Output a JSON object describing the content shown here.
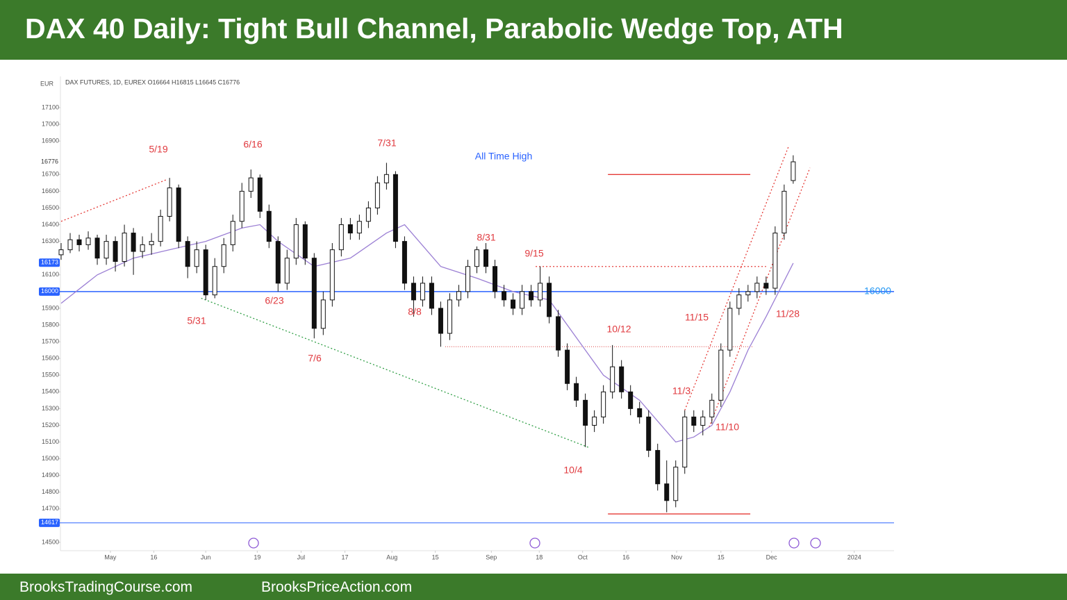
{
  "header": {
    "title": "DAX 40 Daily: Tight Bull Channel, Parabolic Wedge Top, ATH"
  },
  "footer": {
    "left": "BrooksTradingCourse.com",
    "right": "BrooksPriceAction.com"
  },
  "chart_data": {
    "type": "candlestick",
    "currency": "EUR",
    "legend_text": "DAX FUTURES, 1D, EUREX  O16664  H16815  L16645  C16776",
    "up_color": "#ffffff",
    "down_color": "#111111",
    "ylim": [
      14500,
      17100
    ],
    "yticks": [
      14500,
      14700,
      14800,
      14900,
      15000,
      15100,
      15200,
      15300,
      15400,
      15500,
      15600,
      15700,
      15800,
      15900,
      16000,
      16100,
      16300,
      16400,
      16500,
      16600,
      16700,
      16900,
      17000,
      17100
    ],
    "xlim": [
      0,
      184
    ],
    "xticks": [
      {
        "value": 10.9,
        "label": "May"
      },
      {
        "value": 20.5,
        "label": "16"
      },
      {
        "value": 32,
        "label": "Jun"
      },
      {
        "value": 43.4,
        "label": "19"
      },
      {
        "value": 53.1,
        "label": "Jul"
      },
      {
        "value": 62.8,
        "label": "17"
      },
      {
        "value": 73.2,
        "label": "Aug"
      },
      {
        "value": 82.8,
        "label": "15"
      },
      {
        "value": 95.2,
        "label": "Sep"
      },
      {
        "value": 105.8,
        "label": "18"
      },
      {
        "value": 115.4,
        "label": "Oct"
      },
      {
        "value": 125,
        "label": "16"
      },
      {
        "value": 136.2,
        "label": "Nov"
      },
      {
        "value": 146,
        "label": "15"
      },
      {
        "value": 157.2,
        "label": "Dec"
      },
      {
        "value": 175.5,
        "label": "2024"
      }
    ],
    "x": [
      0,
      2,
      4,
      6,
      8,
      10,
      12,
      14,
      16,
      18,
      20,
      22,
      24,
      26,
      28,
      30,
      32,
      34,
      36,
      38,
      40,
      42,
      44,
      46,
      48,
      50,
      52,
      54,
      56,
      58,
      60,
      62,
      64,
      66,
      68,
      70,
      72,
      74,
      76,
      78,
      80,
      82,
      84,
      86,
      88,
      90,
      92,
      94,
      96,
      98,
      100,
      102,
      104,
      106,
      108,
      110,
      112,
      114,
      116,
      118,
      120,
      122,
      124,
      126,
      128,
      130,
      132,
      134,
      136,
      138,
      140,
      142,
      144,
      146,
      148,
      150,
      152,
      154,
      156,
      158,
      160,
      162
    ],
    "ohlc": [
      [
        16220,
        16290,
        16190,
        16250
      ],
      [
        16250,
        16350,
        16230,
        16310
      ],
      [
        16310,
        16340,
        16240,
        16280
      ],
      [
        16280,
        16360,
        16250,
        16320
      ],
      [
        16320,
        16340,
        16160,
        16200
      ],
      [
        16200,
        16340,
        16160,
        16300
      ],
      [
        16300,
        16330,
        16120,
        16180
      ],
      [
        16180,
        16400,
        16150,
        16350
      ],
      [
        16350,
        16380,
        16100,
        16240
      ],
      [
        16240,
        16330,
        16200,
        16280
      ],
      [
        16280,
        16350,
        16220,
        16300
      ],
      [
        16300,
        16490,
        16270,
        16450
      ],
      [
        16450,
        16680,
        16420,
        16620
      ],
      [
        16620,
        16640,
        16260,
        16300
      ],
      [
        16300,
        16330,
        16080,
        16150
      ],
      [
        16150,
        16300,
        16110,
        16250
      ],
      [
        16250,
        16280,
        15950,
        15980
      ],
      [
        15980,
        16200,
        15960,
        16150
      ],
      [
        16150,
        16320,
        16110,
        16280
      ],
      [
        16280,
        16460,
        16240,
        16420
      ],
      [
        16420,
        16650,
        16380,
        16600
      ],
      [
        16600,
        16730,
        16560,
        16680
      ],
      [
        16680,
        16700,
        16440,
        16480
      ],
      [
        16480,
        16520,
        16260,
        16300
      ],
      [
        16300,
        16330,
        16000,
        16050
      ],
      [
        16050,
        16250,
        16010,
        16200
      ],
      [
        16200,
        16440,
        16160,
        16400
      ],
      [
        16400,
        16420,
        16160,
        16200
      ],
      [
        16200,
        16230,
        15720,
        15780
      ],
      [
        15780,
        16000,
        15740,
        15950
      ],
      [
        15950,
        16290,
        15910,
        16250
      ],
      [
        16250,
        16440,
        16210,
        16400
      ],
      [
        16400,
        16440,
        16310,
        16350
      ],
      [
        16350,
        16460,
        16310,
        16420
      ],
      [
        16420,
        16540,
        16380,
        16500
      ],
      [
        16500,
        16690,
        16460,
        16650
      ],
      [
        16650,
        16770,
        16610,
        16700
      ],
      [
        16700,
        16720,
        16260,
        16300
      ],
      [
        16300,
        16330,
        16010,
        16050
      ],
      [
        16050,
        16090,
        15850,
        15950
      ],
      [
        15950,
        16090,
        15910,
        16050
      ],
      [
        16050,
        16090,
        15860,
        15900
      ],
      [
        15900,
        15940,
        15670,
        15750
      ],
      [
        15750,
        15990,
        15710,
        15950
      ],
      [
        15950,
        16040,
        15910,
        16000
      ],
      [
        16000,
        16190,
        15960,
        16150
      ],
      [
        16150,
        16270,
        16110,
        16250
      ],
      [
        16250,
        16290,
        16110,
        16150
      ],
      [
        16150,
        16190,
        15960,
        16000
      ],
      [
        16000,
        16040,
        15910,
        15950
      ],
      [
        15950,
        15990,
        15860,
        15900
      ],
      [
        15900,
        16040,
        15860,
        16000
      ],
      [
        16000,
        16040,
        15910,
        15950
      ],
      [
        15950,
        16150,
        15910,
        16050
      ],
      [
        16050,
        16090,
        15810,
        15850
      ],
      [
        15850,
        15890,
        15610,
        15650
      ],
      [
        15650,
        15690,
        15410,
        15450
      ],
      [
        15450,
        15490,
        15310,
        15350
      ],
      [
        15350,
        15390,
        15070,
        15200
      ],
      [
        15200,
        15290,
        15160,
        15250
      ],
      [
        15250,
        15440,
        15210,
        15400
      ],
      [
        15400,
        15680,
        15360,
        15550
      ],
      [
        15550,
        15590,
        15360,
        15400
      ],
      [
        15400,
        15440,
        15260,
        15300
      ],
      [
        15300,
        15340,
        15210,
        15250
      ],
      [
        15250,
        15290,
        15010,
        15050
      ],
      [
        15050,
        15090,
        14810,
        14850
      ],
      [
        14850,
        14990,
        14680,
        14750
      ],
      [
        14750,
        14990,
        14710,
        14950
      ],
      [
        14950,
        15290,
        14910,
        15250
      ],
      [
        15250,
        15290,
        15160,
        15200
      ],
      [
        15200,
        15290,
        15140,
        15250
      ],
      [
        15250,
        15390,
        15210,
        15350
      ],
      [
        15350,
        15690,
        15310,
        15650
      ],
      [
        15650,
        15940,
        15610,
        15900
      ],
      [
        15900,
        16020,
        15860,
        15980
      ],
      [
        15980,
        16040,
        15940,
        16000
      ],
      [
        16000,
        16090,
        15960,
        16050
      ],
      [
        16050,
        16090,
        15980,
        16020
      ],
      [
        16020,
        16390,
        15980,
        16350
      ],
      [
        16350,
        16640,
        16310,
        16600
      ],
      [
        16664,
        16815,
        16645,
        16776
      ]
    ],
    "moving_average": {
      "color": "#9b7fd4",
      "x": [
        0,
        8,
        16,
        24,
        32,
        40,
        44,
        48,
        56,
        64,
        72,
        76,
        84,
        92,
        100,
        108,
        116,
        120,
        128,
        136,
        140,
        144,
        148,
        152,
        156,
        162
      ],
      "values": [
        15930,
        16100,
        16200,
        16250,
        16300,
        16380,
        16400,
        16300,
        16150,
        16200,
        16350,
        16400,
        16150,
        16080,
        16000,
        15950,
        15650,
        15500,
        15350,
        15100,
        15130,
        15200,
        15400,
        15650,
        15850,
        16170
      ]
    },
    "horizontal_lines": [
      {
        "value": 16000,
        "color": "#2962ff"
      },
      {
        "value": 14617,
        "color": "#2962ff"
      }
    ],
    "price_tags": [
      16173,
      16000,
      14617
    ],
    "last_price": 16776,
    "trendlines": [
      {
        "x": [
          0,
          23.4
        ],
        "y": [
          16420,
          16670
        ],
        "color": "#e53935",
        "dash": "2 3"
      },
      {
        "x": [
          31,
          117
        ],
        "y": [
          15960,
          15065
        ],
        "color": "#2e9e44",
        "dash": "2 3"
      },
      {
        "x": [
          105,
          156
        ],
        "y": [
          16150,
          16150
        ],
        "color": "#e53935",
        "dash": "2 3"
      },
      {
        "x": [
          85,
          153
        ],
        "y": [
          15670,
          15670
        ],
        "color": "#e57373",
        "dash": "1 2"
      },
      {
        "x": [
          138,
          161
        ],
        "y": [
          15290,
          16870
        ],
        "color": "#e53935",
        "dash": "2 3"
      },
      {
        "x": [
          143.4,
          165.7
        ],
        "y": [
          15190,
          16740
        ],
        "color": "#e53935",
        "dash": "2 3"
      },
      {
        "x": [
          121,
          152.5
        ],
        "y": [
          16700,
          16700
        ],
        "color": "#e53935",
        "dash": "none"
      },
      {
        "x": [
          121,
          152.5
        ],
        "y": [
          14670,
          14670
        ],
        "color": "#e53935",
        "dash": "none"
      }
    ],
    "annotations": [
      "5/19",
      "6/16",
      "7/31",
      "All Time High",
      "8/31",
      "9/15",
      "5/31",
      "6/23",
      "8/8",
      "7/6",
      "10/12",
      "11/15",
      "11/28",
      "11/3",
      "11/10",
      "10/4"
    ]
  }
}
